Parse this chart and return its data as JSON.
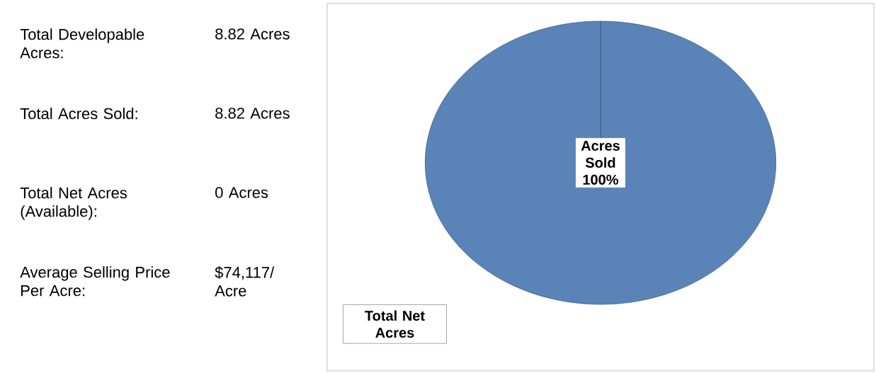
{
  "chart_data": [
    {
      "type": "other",
      "annotations": [
        "Total Developable Acres:",
        "8.82 Acres",
        "Total Acres Sold:",
        "8.82 Acres",
        "Total Net Acres (Available):",
        "0 Acres",
        "Average Selling Price Per Acre:",
        "$74,117/ Acre"
      ]
    },
    {
      "type": "pie",
      "title": "Total Net Acres",
      "categories": [
        "Acres Sold"
      ],
      "values": [
        100
      ],
      "value_labels": [
        "100%"
      ],
      "colors": [
        "#5a84b8"
      ]
    }
  ]
}
